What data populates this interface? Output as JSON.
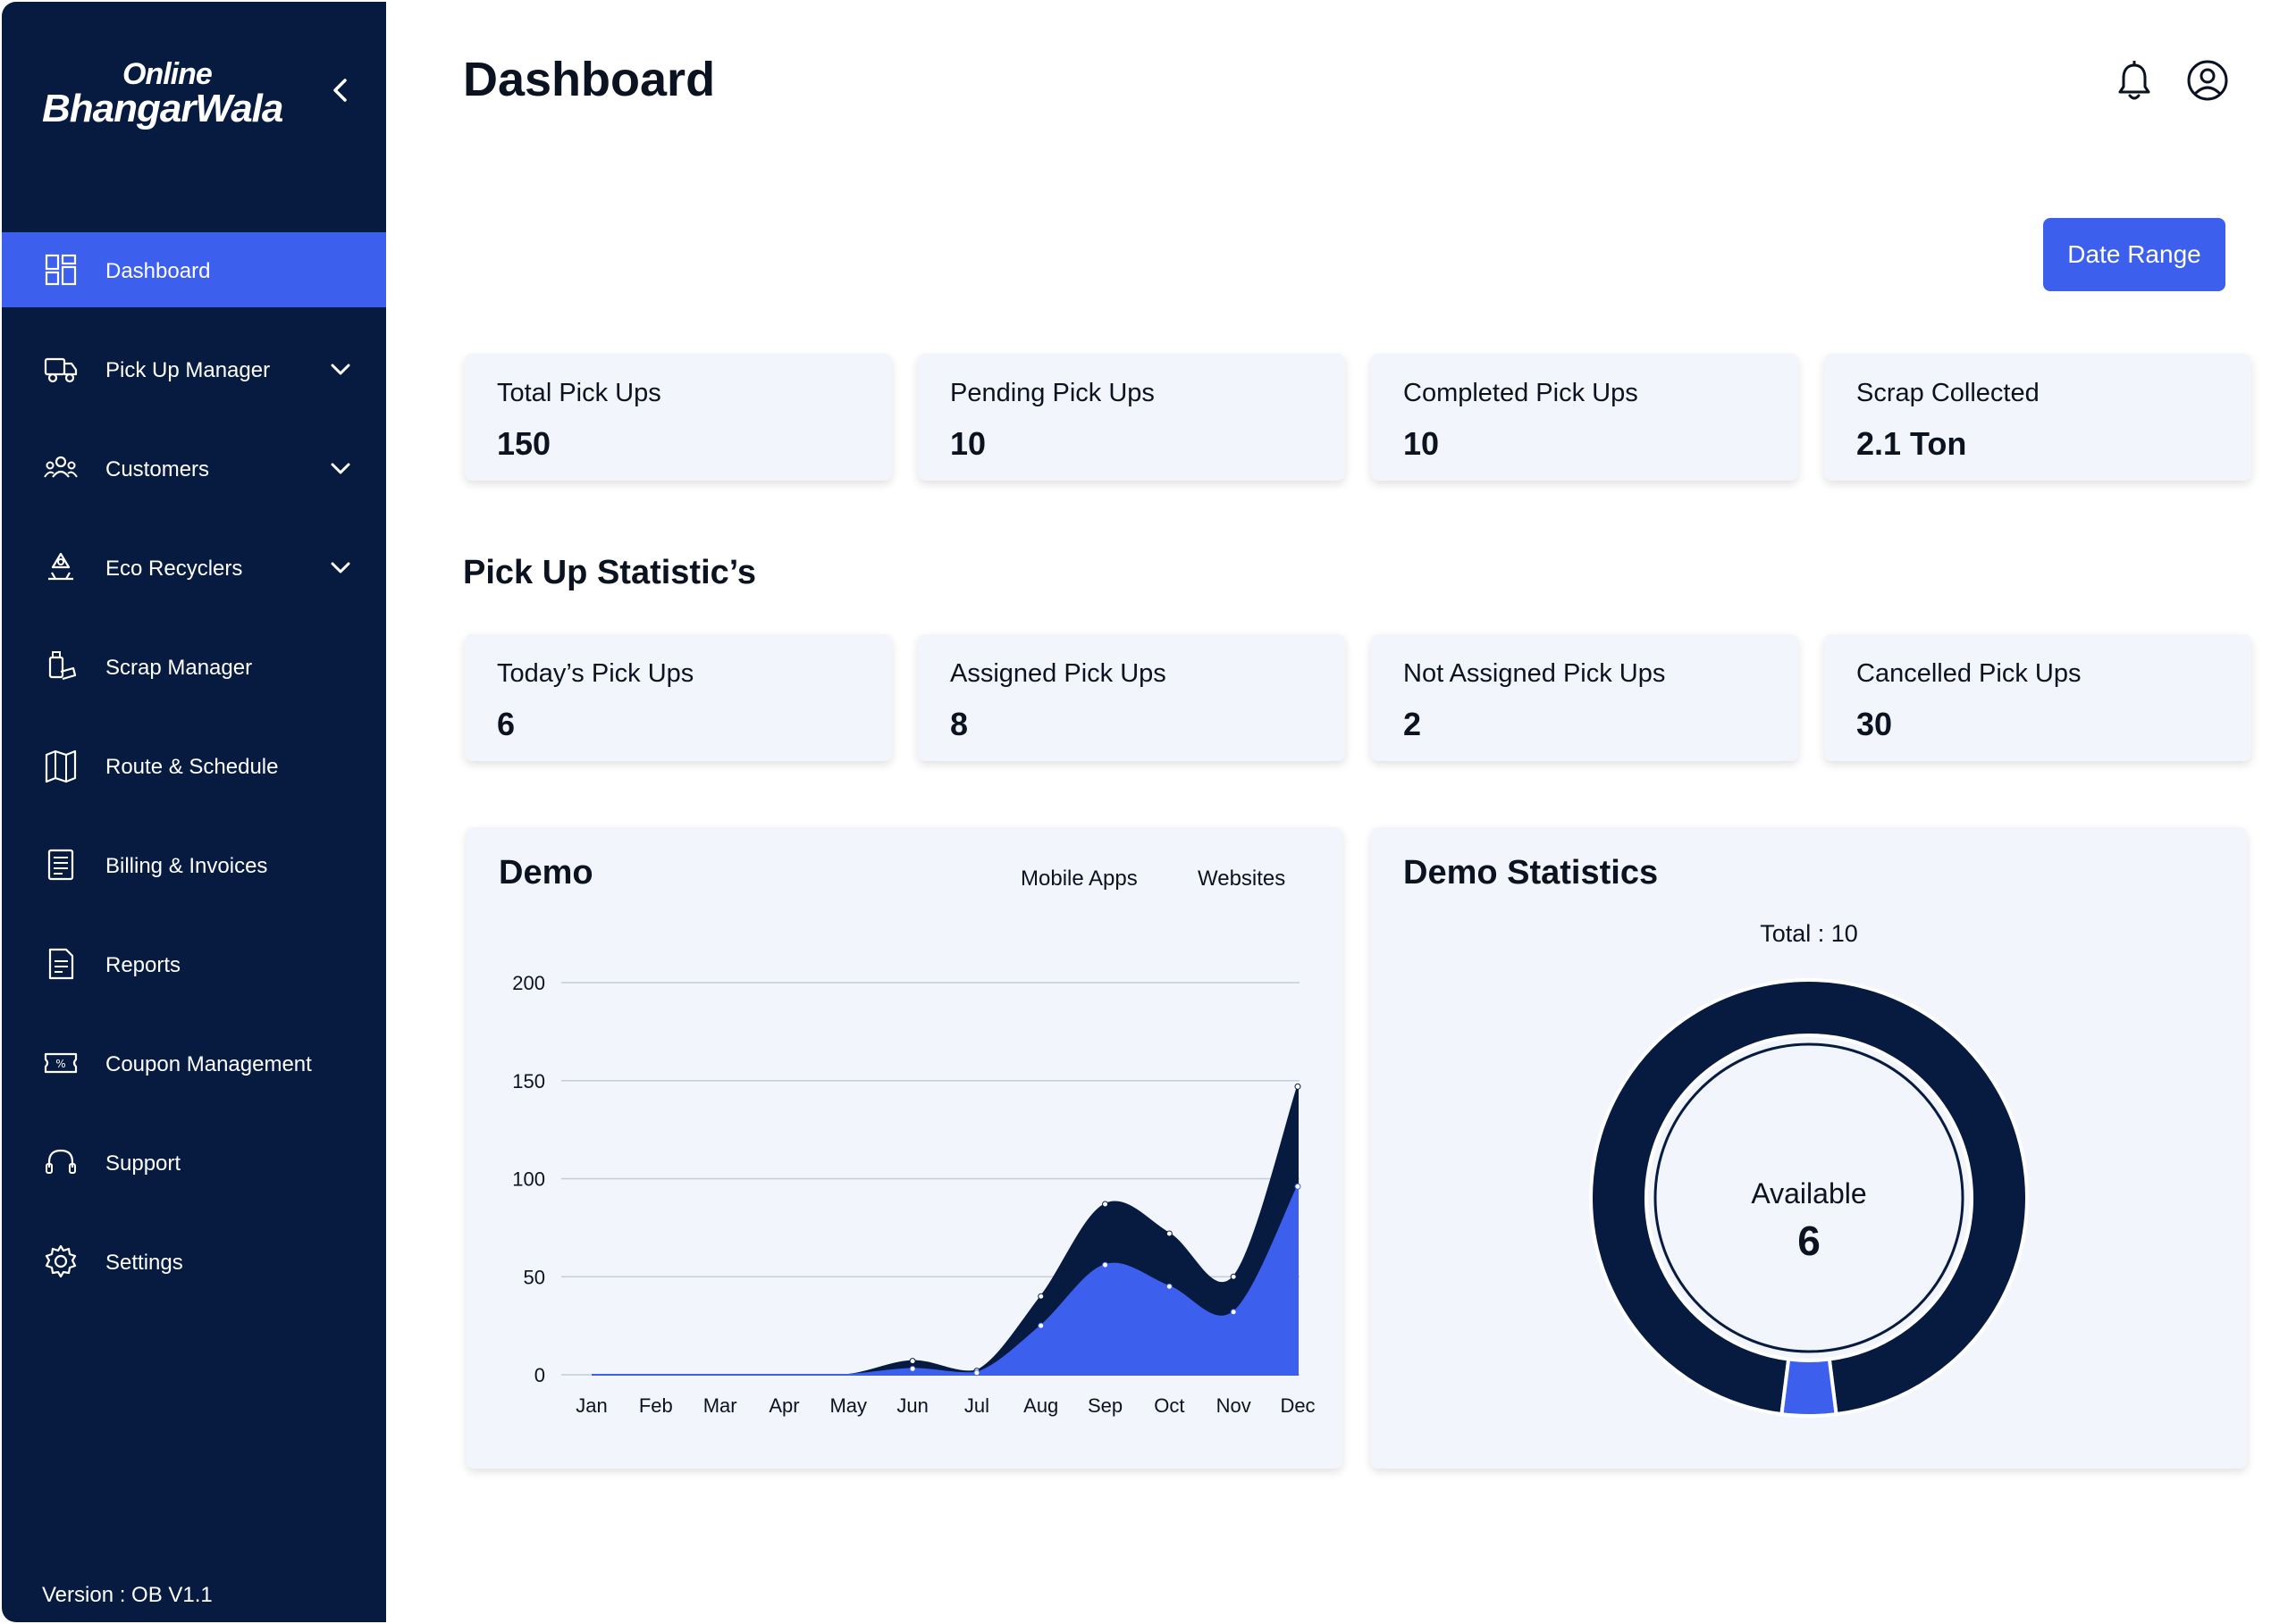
{
  "app": {
    "logo_line1": "Online",
    "logo_line2": "BhangarWala",
    "version": "Version : OB V1.1"
  },
  "sidebar": {
    "items": [
      {
        "label": "Dashboard",
        "icon": "dashboard-icon",
        "active": true,
        "has_chevron": false
      },
      {
        "label": "Pick Up Manager",
        "icon": "truck-icon",
        "active": false,
        "has_chevron": true
      },
      {
        "label": "Customers",
        "icon": "users-icon",
        "active": false,
        "has_chevron": true
      },
      {
        "label": "Eco Recyclers",
        "icon": "recycle-icon",
        "active": false,
        "has_chevron": true
      },
      {
        "label": "Scrap Manager",
        "icon": "scrap-icon",
        "active": false,
        "has_chevron": false
      },
      {
        "label": "Route & Schedule",
        "icon": "map-icon",
        "active": false,
        "has_chevron": false
      },
      {
        "label": "Billing & Invoices",
        "icon": "billing-icon",
        "active": false,
        "has_chevron": false
      },
      {
        "label": "Reports",
        "icon": "reports-icon",
        "active": false,
        "has_chevron": false
      },
      {
        "label": "Coupon Management",
        "icon": "coupon-icon",
        "active": false,
        "has_chevron": false
      },
      {
        "label": "Support",
        "icon": "headset-icon",
        "active": false,
        "has_chevron": false
      },
      {
        "label": "Settings",
        "icon": "gear-icon",
        "active": false,
        "has_chevron": false
      }
    ]
  },
  "header": {
    "title": "Dashboard",
    "date_range_label": "Date Range"
  },
  "summary_cards": [
    {
      "label": "Total Pick Ups",
      "value": "150"
    },
    {
      "label": "Pending Pick Ups",
      "value": "10"
    },
    {
      "label": "Completed Pick Ups",
      "value": "10"
    },
    {
      "label": "Scrap Collected",
      "value": "2.1 Ton"
    }
  ],
  "pickup_stats": {
    "title": "Pick Up Statistic’s",
    "cards": [
      {
        "label": "Today’s Pick Ups",
        "value": "6"
      },
      {
        "label": "Assigned Pick Ups",
        "value": "8"
      },
      {
        "label": "Not Assigned Pick Ups",
        "value": "2"
      },
      {
        "label": "Cancelled Pick Ups",
        "value": "30"
      }
    ]
  },
  "demo_panel": {
    "title": "Demo",
    "legend": [
      "Mobile Apps",
      "Websites"
    ]
  },
  "stats_panel": {
    "title": "Demo Statistics",
    "total_label": "Total : 10",
    "center_label": "Available",
    "center_value": "6"
  },
  "colors": {
    "navy": "#071a40",
    "accent": "#3d5fee",
    "card_bg": "#f2f5fc"
  },
  "chart_data": [
    {
      "type": "area",
      "title": "Demo",
      "categories": [
        "Jan",
        "Feb",
        "Mar",
        "Apr",
        "May",
        "Jun",
        "Jul",
        "Aug",
        "Sep",
        "Oct",
        "Nov",
        "Dec"
      ],
      "series": [
        {
          "name": "Mobile Apps",
          "color": "#071a40",
          "values": [
            0,
            0,
            0,
            0,
            0,
            7,
            2,
            40,
            87,
            72,
            50,
            147
          ]
        },
        {
          "name": "Websites",
          "color": "#3d5fee",
          "values": [
            0,
            0,
            0,
            0,
            0,
            3,
            1,
            25,
            56,
            45,
            32,
            96
          ]
        }
      ],
      "yticks": [
        0,
        50,
        100,
        150,
        200
      ],
      "ylim": [
        0,
        200
      ],
      "grid": true
    },
    {
      "type": "pie",
      "title": "Demo Statistics",
      "slices": [
        {
          "value": 96,
          "color": "#071a40"
        },
        {
          "value": 4,
          "color": "#3d5fee"
        }
      ]
    }
  ]
}
